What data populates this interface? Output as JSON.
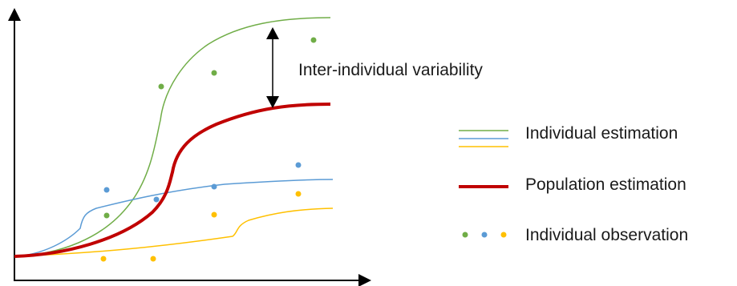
{
  "annotation": {
    "variability_label": "Inter-individual variability"
  },
  "legend": {
    "individual_estimation": "Individual estimation",
    "population_estimation": "Population estimation",
    "individual_observation": "Individual observation"
  },
  "colors": {
    "green": "#70ad47",
    "blue": "#5b9bd5",
    "yellow": "#ffc000",
    "population": "#c00000",
    "axis": "#000000"
  }
}
